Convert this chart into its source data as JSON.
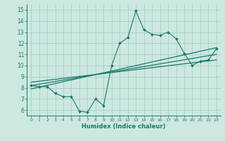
{
  "bg_color": "#cce8e0",
  "grid_color": "#aacec6",
  "line_color": "#1a7a6e",
  "xlabel": "Humidex (Indice chaleur)",
  "xlim": [
    -0.5,
    23.5
  ],
  "ylim": [
    5.5,
    15.5
  ],
  "xticks": [
    0,
    1,
    2,
    3,
    4,
    5,
    6,
    7,
    8,
    9,
    10,
    11,
    12,
    13,
    14,
    15,
    16,
    17,
    18,
    19,
    20,
    21,
    22,
    23
  ],
  "yticks": [
    6,
    7,
    8,
    9,
    10,
    11,
    12,
    13,
    14,
    15
  ],
  "main_x": [
    0,
    1,
    2,
    3,
    4,
    5,
    6,
    7,
    8,
    9,
    10,
    11,
    12,
    13,
    14,
    15,
    16,
    17,
    18,
    19,
    20,
    21,
    22,
    23
  ],
  "main_y": [
    8.2,
    8.1,
    8.1,
    7.5,
    7.2,
    7.2,
    5.9,
    5.8,
    7.0,
    6.4,
    10.0,
    12.0,
    12.5,
    14.9,
    13.2,
    12.8,
    12.7,
    13.0,
    12.4,
    11.1,
    10.0,
    10.4,
    10.5,
    11.5
  ],
  "line1_x": [
    0,
    23
  ],
  "line1_y": [
    7.9,
    11.6
  ],
  "line2_x": [
    0,
    23
  ],
  "line2_y": [
    8.2,
    11.0
  ],
  "line3_x": [
    0,
    23
  ],
  "line3_y": [
    8.5,
    10.5
  ]
}
